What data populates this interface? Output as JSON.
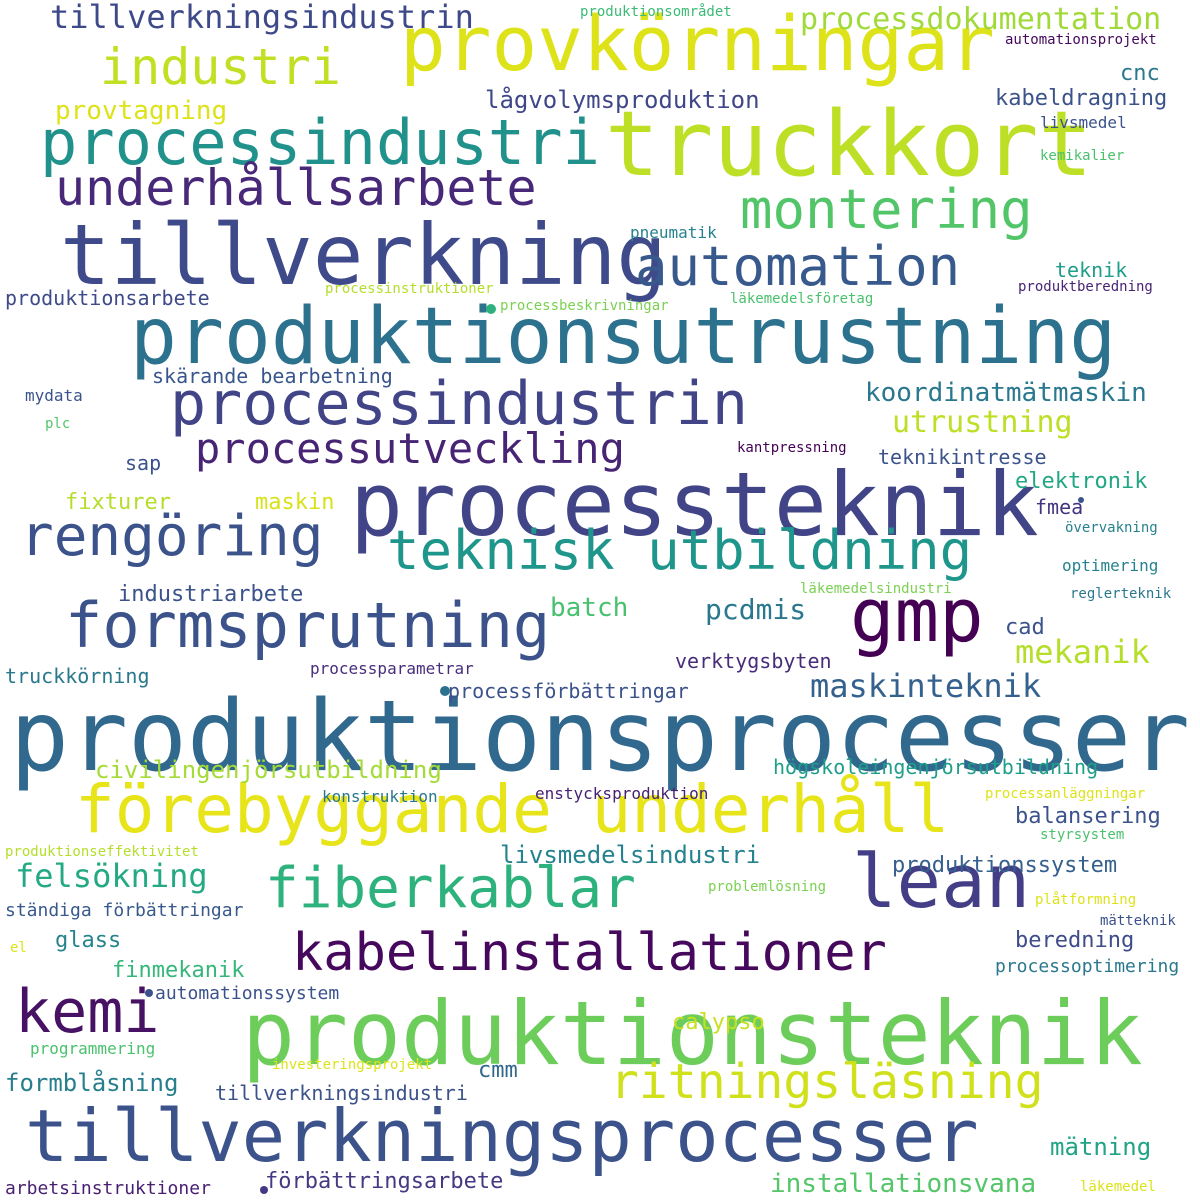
{
  "words": [
    {
      "text": "produktionsprocesser",
      "color": "#31688e"
    },
    {
      "text": "produktionsutrustning",
      "color": "#2c728e"
    },
    {
      "text": "truckkort",
      "color": "#bddf26"
    },
    {
      "text": "processteknik",
      "color": "#414487"
    },
    {
      "text": "provkörningar",
      "color": "#dde318"
    },
    {
      "text": "tillverkning",
      "color": "#3e4a89"
    },
    {
      "text": "produktionsteknik",
      "color": "#6ccd5a"
    },
    {
      "text": "gmp",
      "color": "#440154"
    },
    {
      "text": "tillverkningsprocesser",
      "color": "#3b528b"
    },
    {
      "text": "processindustri",
      "color": "#21918c"
    },
    {
      "text": "lean",
      "color": "#433e85"
    },
    {
      "text": "förebyggande underhåll",
      "color": "#e7e419"
    },
    {
      "text": "processindustrin",
      "color": "#414487"
    },
    {
      "text": "formsprutning",
      "color": "#3b528b"
    },
    {
      "text": "teknisk utbildning",
      "color": "#1f968b"
    },
    {
      "text": "fiberkablar",
      "color": "#2db27d"
    },
    {
      "text": "kabelinstallationer",
      "color": "#46085c"
    },
    {
      "text": "underhållsarbete",
      "color": "#482878"
    },
    {
      "text": "automation",
      "color": "#38598c"
    },
    {
      "text": "rengöring",
      "color": "#3b528b"
    },
    {
      "text": "montering",
      "color": "#52c569"
    },
    {
      "text": "kemi",
      "color": "#471164"
    },
    {
      "text": "ritningsläsning",
      "color": "#d0e11c"
    },
    {
      "text": "industri",
      "color": "#c2df23"
    },
    {
      "text": "processutveckling",
      "color": "#482475"
    },
    {
      "text": "tillverkningsindustrin",
      "color": "#3e4989"
    },
    {
      "text": "processdokumentation",
      "color": "#a0da39"
    },
    {
      "text": "kabeldragning",
      "color": "#3b528b"
    },
    {
      "text": "lågvolymsproduktion",
      "color": "#3f4788"
    },
    {
      "text": "koordinatmätmaskin",
      "color": "#2a788e"
    },
    {
      "text": "utrustning",
      "color": "#bddf26"
    },
    {
      "text": "civilingenjörsutbildning",
      "color": "#a5db36"
    },
    {
      "text": "högskoleingenjörsutbildning",
      "color": "#1f9e89"
    },
    {
      "text": "livsmedelsindustri",
      "color": "#26828e"
    },
    {
      "text": "produktionssystem",
      "color": "#35608d"
    },
    {
      "text": "felsökning",
      "color": "#23a983"
    },
    {
      "text": "maskinteknik",
      "color": "#34618d"
    },
    {
      "text": "mekanik",
      "color": "#b5de2b"
    },
    {
      "text": "pcdmis",
      "color": "#2a788e"
    },
    {
      "text": "provtagning",
      "color": "#dde318"
    },
    {
      "text": "produktionsarbete",
      "color": "#3e4a89"
    },
    {
      "text": "skärande bearbetning",
      "color": "#39568c"
    },
    {
      "text": "industriarbete",
      "color": "#3b528b"
    },
    {
      "text": "batch",
      "color": "#48c16e"
    },
    {
      "text": "formblåsning",
      "color": "#277f8e"
    },
    {
      "text": "tillverkningsindustri",
      "color": "#3b528b"
    },
    {
      "text": "mätning",
      "color": "#20a386"
    },
    {
      "text": "förbättringsarbete",
      "color": "#443a83"
    },
    {
      "text": "installationsvana",
      "color": "#54c568"
    },
    {
      "text": "arbetsinstruktioner",
      "color": "#481f70"
    },
    {
      "text": "automationssystem",
      "color": "#3b528b"
    },
    {
      "text": "finmekanik",
      "color": "#35b779"
    },
    {
      "text": "glass",
      "color": "#25848e"
    },
    {
      "text": "ständiga förbättringar",
      "color": "#38598c"
    },
    {
      "text": "beredning",
      "color": "#3e4c8a"
    },
    {
      "text": "processoptimering",
      "color": "#2a788e"
    },
    {
      "text": "balansering",
      "color": "#3b528b"
    },
    {
      "text": "elektronik",
      "color": "#22a785"
    },
    {
      "text": "teknikintresse",
      "color": "#3b528b"
    },
    {
      "text": "fmea",
      "color": "#46337f"
    },
    {
      "text": "cad",
      "color": "#3b528b"
    },
    {
      "text": "verktygsbyten",
      "color": "#472c7a"
    },
    {
      "text": "processförbättringar",
      "color": "#3b528b"
    },
    {
      "text": "truckkörning",
      "color": "#2a788e"
    },
    {
      "text": "processparametrar",
      "color": "#472d7b"
    },
    {
      "text": "calypso",
      "color": "#c8e020"
    },
    {
      "text": "cmm",
      "color": "#31688e"
    },
    {
      "text": "programmering",
      "color": "#4ac16d"
    },
    {
      "text": "konstruktion",
      "color": "#2a788e"
    },
    {
      "text": "enstycksproduktion",
      "color": "#482173"
    },
    {
      "text": "fixturer",
      "color": "#b5de2b"
    },
    {
      "text": "maskin",
      "color": "#d8e219"
    },
    {
      "text": "sap",
      "color": "#3b528b"
    },
    {
      "text": "cnc",
      "color": "#2a788e"
    },
    {
      "text": "teknik",
      "color": "#1f9e89"
    },
    {
      "text": "pneumatik",
      "color": "#26828e"
    },
    {
      "text": "mydata",
      "color": "#3b528b"
    },
    {
      "text": "plc",
      "color": "#52c569"
    },
    {
      "text": "optimering",
      "color": "#26828e"
    },
    {
      "text": "reglerteknik",
      "color": "#2a788e"
    },
    {
      "text": "övervakning",
      "color": "#26828e"
    },
    {
      "text": "produktionsområdet",
      "color": "#3bbb75"
    },
    {
      "text": "automationsprojekt",
      "color": "#46085c"
    },
    {
      "text": "livsmedel",
      "color": "#3b528b"
    },
    {
      "text": "kemikalier",
      "color": "#4ac16d"
    },
    {
      "text": "produktberedning",
      "color": "#482475"
    },
    {
      "text": "läkemedelsföretag",
      "color": "#4ac16d"
    },
    {
      "text": "processinstruktioner",
      "color": "#b5de2b"
    },
    {
      "text": "processbeskrivningar",
      "color": "#7ad151"
    },
    {
      "text": "kantpressning",
      "color": "#440154"
    },
    {
      "text": "läkemedelsindustri",
      "color": "#7ad151"
    },
    {
      "text": "processanläggningar",
      "color": "#dde318"
    },
    {
      "text": "styrsystem",
      "color": "#4ac16d"
    },
    {
      "text": "produktionseffektivitet",
      "color": "#b5de2b"
    },
    {
      "text": "problemlösning",
      "color": "#7ad151"
    },
    {
      "text": "plåtformning",
      "color": "#dde318"
    },
    {
      "text": "mätteknik",
      "color": "#3b528b"
    },
    {
      "text": "el",
      "color": "#dde318"
    },
    {
      "text": "investeringsprojekt",
      "color": "#dde318"
    },
    {
      "text": "läkemedel",
      "color": "#dde318"
    }
  ],
  "dots": [
    {
      "color": "#2db27d"
    },
    {
      "color": "#2c728e"
    },
    {
      "color": "#3b528b"
    },
    {
      "color": "#443a83"
    },
    {
      "color": "#3b528b"
    }
  ]
}
